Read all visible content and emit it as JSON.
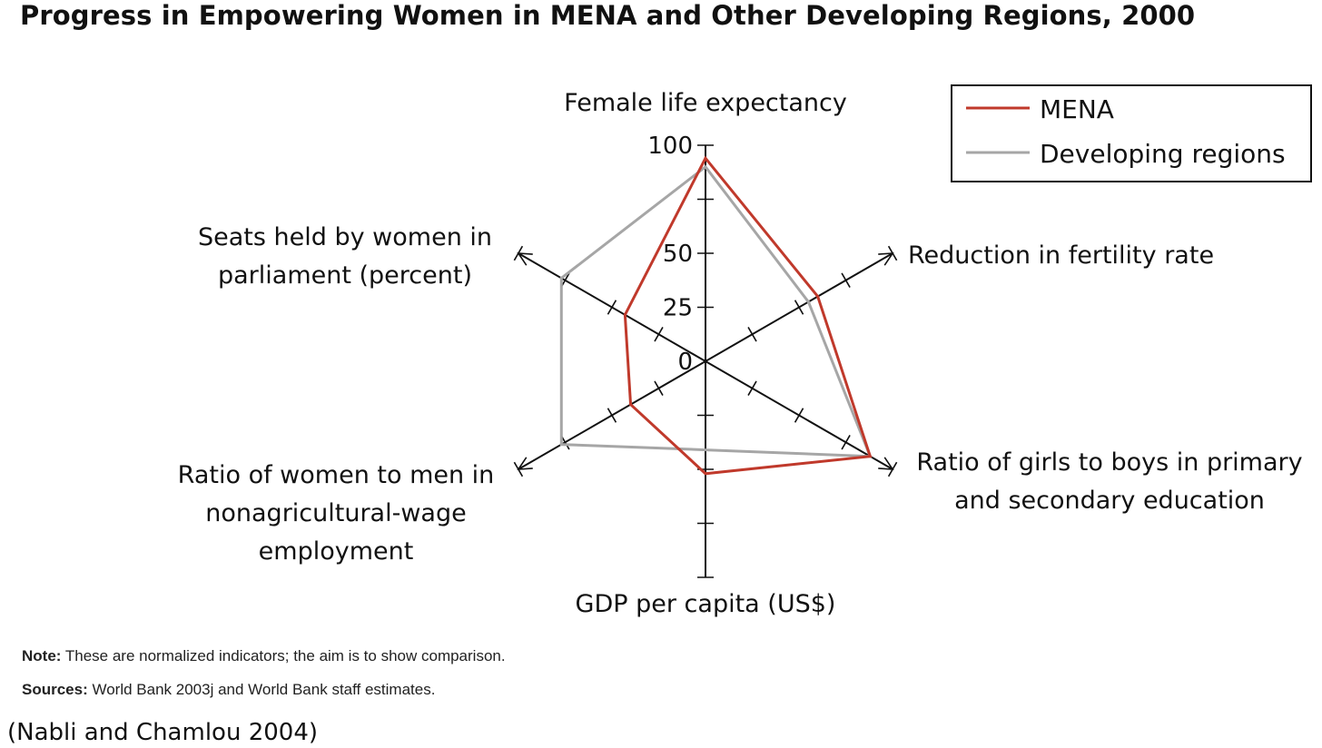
{
  "title": "Progress in Empowering Women in MENA and Other Developing Regions, 2000",
  "chart_data": {
    "type": "radar",
    "axes": [
      {
        "label_lines": [
          "Female life expectancy"
        ],
        "key": "female-life-expectancy"
      },
      {
        "label_lines": [
          "Reduction in fertility rate"
        ],
        "key": "reduction-in-fertility-rate"
      },
      {
        "label_lines": [
          "Ratio of girls to boys in primary",
          "and secondary education"
        ],
        "key": "ratio-girls-boys-education"
      },
      {
        "label_lines": [
          "GDP per capita (US$)"
        ],
        "key": "gdp-per-capita"
      },
      {
        "label_lines": [
          "Ratio of women to men in",
          "nonagricultural-wage",
          "employment"
        ],
        "key": "ratio-women-men-employment"
      },
      {
        "label_lines": [
          "Seats held by women in",
          "parliament (percent)"
        ],
        "key": "seats-held-by-women"
      }
    ],
    "scale": {
      "min": 0,
      "max": 100,
      "tick_step": 25
    },
    "tick_labels": [
      "0",
      "25",
      "50",
      "100"
    ],
    "series": [
      {
        "name": "MENA",
        "color": "#c0392b",
        "values": [
          94,
          60,
          88,
          52,
          40,
          43
        ]
      },
      {
        "name": "Developing regions",
        "color": "#a6a6a6",
        "values": [
          90,
          55,
          88,
          41,
          77,
          77
        ]
      }
    ],
    "legend_position": "top-right"
  },
  "note": {
    "label": "Note:",
    "text": " These are normalized indicators; the aim is to show comparison."
  },
  "sources": {
    "label": "Sources:",
    "text": " World Bank 2003j and World Bank staff estimates."
  },
  "citation": "(Nabli and Chamlou 2004)"
}
